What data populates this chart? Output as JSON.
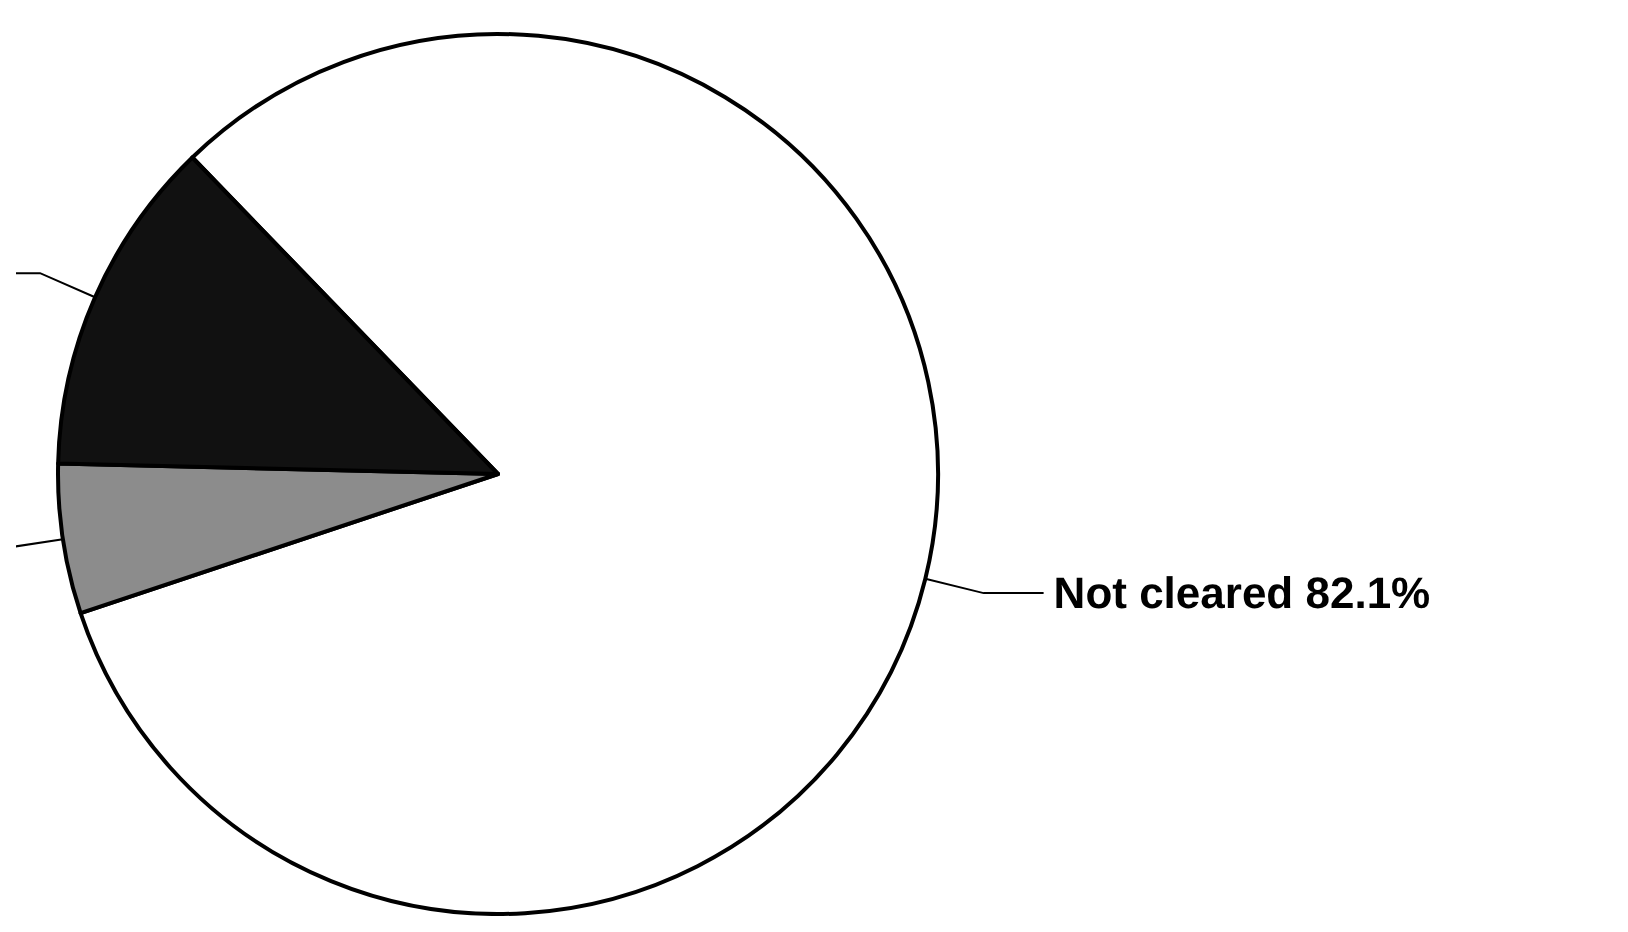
{
  "chart_data": {
    "type": "pie",
    "categories": [
      "Not cleared",
      null,
      null
    ],
    "values": [
      82.1,
      5.5,
      12.4
    ],
    "value_labels": [
      "82.1%",
      null,
      null
    ],
    "colors": [
      "#ffffff",
      "#8c8c8c",
      "#111111"
    ]
  }
}
